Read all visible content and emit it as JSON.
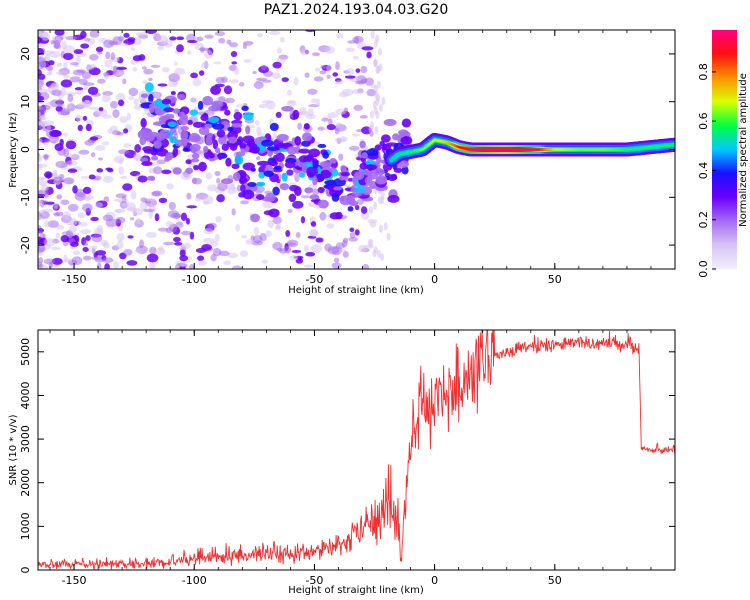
{
  "figure_title": "PAZ1.2024.193.04.03.G20",
  "colors": {
    "snr_line": "#ee3030",
    "spectrogram_cmap": [
      "#f3eefb",
      "#d8c4f4",
      "#a56cf2",
      "#6a00ff",
      "#1a10ff",
      "#00c8ff",
      "#00ff40",
      "#d8ff00",
      "#ff9000",
      "#ff1010",
      "#ff0080"
    ]
  },
  "chart_data": [
    {
      "type": "heatmap",
      "title": "PAZ1.2024.193.04.03.G20",
      "xlabel": "Height of straight line (km)",
      "ylabel": "Frequency (Hz)",
      "xlim": [
        -165,
        100
      ],
      "ylim": [
        -25,
        25
      ],
      "xticks": [
        -150,
        -100,
        -50,
        0,
        50
      ],
      "yticks": [
        -20,
        -10,
        0,
        10,
        20
      ],
      "colorbar": {
        "label": "Normalized spectral amplitude",
        "range": [
          0.0,
          0.97
        ],
        "ticks": [
          "0.0",
          "0.2",
          "0.4",
          "0.6",
          "0.8"
        ],
        "colormap": "gist_rainbow_r"
      },
      "ridge": {
        "x": [
          -120,
          -110,
          -100,
          -90,
          -80,
          -70,
          -60,
          -50,
          -45,
          -40,
          -35,
          -30,
          -25,
          -20,
          -15,
          -10,
          -5,
          0,
          5,
          10,
          15,
          20,
          30,
          40,
          50,
          60,
          70,
          80,
          90,
          100
        ],
        "y": [
          5,
          4.5,
          3,
          1.5,
          0,
          -1.5,
          -2.5,
          -3.5,
          -5,
          -7,
          -7,
          -6,
          -4.5,
          -3,
          -1,
          -0.5,
          0,
          2,
          1.5,
          0.5,
          0,
          0,
          0,
          0,
          0,
          0,
          0,
          0,
          0.5,
          1
        ],
        "amplitude": [
          0.2,
          0.3,
          0.25,
          0.3,
          0.28,
          0.3,
          0.3,
          0.35,
          0.4,
          0.35,
          0.3,
          0.4,
          0.3,
          0.35,
          0.4,
          0.45,
          0.5,
          0.55,
          0.6,
          0.75,
          0.85,
          0.9,
          0.95,
          0.85,
          0.55,
          0.5,
          0.5,
          0.45,
          0.45,
          0.45
        ]
      }
    },
    {
      "type": "line",
      "xlabel": "Height of straight line (km)",
      "ylabel": "SNR (10 * v/v)",
      "xlim": [
        -165,
        100
      ],
      "ylim": [
        0,
        5500
      ],
      "xticks": [
        -150,
        -100,
        -50,
        0,
        50
      ],
      "yticks": [
        0,
        1000,
        2000,
        3000,
        4000,
        5000
      ],
      "grid": false,
      "series": [
        {
          "x": [
            -165,
            -150,
            -130,
            -110,
            -100,
            -90,
            -80,
            -70,
            -60,
            -50,
            -40,
            -35,
            -30,
            -25,
            -20,
            -15,
            -14,
            -12,
            -10,
            -8,
            -5,
            0,
            5,
            10,
            15,
            20,
            25,
            30,
            40,
            50,
            60,
            70,
            80,
            85,
            86,
            90,
            95,
            100
          ],
          "y": [
            150,
            120,
            130,
            180,
            250,
            300,
            350,
            400,
            380,
            400,
            500,
            700,
            900,
            1200,
            1500,
            1000,
            300,
            1500,
            3000,
            3300,
            3600,
            3800,
            4200,
            4000,
            4500,
            4700,
            4900,
            5000,
            5100,
            5150,
            5200,
            5200,
            5150,
            5100,
            2800,
            2750,
            2750,
            2750
          ]
        }
      ]
    }
  ]
}
